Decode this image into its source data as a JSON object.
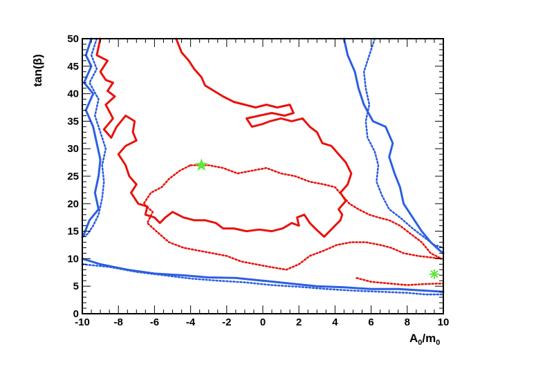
{
  "chart_data": {
    "type": "line",
    "xlabel": "A0/m0",
    "xlabel_main": "A",
    "xlabel_sub1": "0",
    "xlabel_mid": "/m",
    "xlabel_sub2": "0",
    "ylabel": "tan(β)",
    "xlim": [
      -10,
      10
    ],
    "ylim": [
      0,
      50
    ],
    "x_ticks": [
      -10,
      -8,
      -6,
      -4,
      -2,
      0,
      2,
      4,
      6,
      8,
      10
    ],
    "y_ticks": [
      0,
      5,
      10,
      15,
      20,
      25,
      30,
      35,
      40,
      45,
      50
    ],
    "grid": false,
    "colors": {
      "red": "#e8120c",
      "blue": "#2b5fe0",
      "green": "#5fe83a"
    },
    "series": [
      {
        "color": "red",
        "style": "solid",
        "points": [
          [
            -9.0,
            50
          ],
          [
            -9.2,
            47.0
          ],
          [
            -8.6,
            46.0
          ],
          [
            -9.0,
            44.0
          ],
          [
            -8.7,
            42.5
          ],
          [
            -8.3,
            42.0
          ],
          [
            -8.6,
            40.5
          ],
          [
            -8.2,
            39.5
          ],
          [
            -8.7,
            38.0
          ],
          [
            -8.3,
            35.5
          ],
          [
            -8.8,
            33.5
          ],
          [
            -8.4,
            32.0
          ],
          [
            -8.1,
            34.0
          ],
          [
            -7.6,
            36.0
          ],
          [
            -7.1,
            35.0
          ],
          [
            -7.2,
            33.0
          ],
          [
            -7.0,
            31.5
          ],
          [
            -7.6,
            30.5
          ],
          [
            -8.0,
            29.0
          ],
          [
            -7.6,
            27.0
          ],
          [
            -7.4,
            25.0
          ],
          [
            -7.0,
            23.5
          ],
          [
            -7.3,
            22.0
          ],
          [
            -6.9,
            20.0
          ],
          [
            -6.4,
            19.5
          ],
          [
            -6.5,
            18.0
          ],
          [
            -6.0,
            17.5
          ],
          [
            -5.7,
            16.5
          ],
          [
            -5.4,
            17.5
          ],
          [
            -5.0,
            18.5
          ],
          [
            -4.4,
            17.5
          ],
          [
            -3.8,
            17.0
          ],
          [
            -3.2,
            17.0
          ],
          [
            -2.6,
            16.5
          ],
          [
            -2.2,
            15.5
          ],
          [
            -1.6,
            15.5
          ],
          [
            -0.9,
            15.0
          ],
          [
            -0.2,
            15.3
          ],
          [
            0.5,
            15.0
          ],
          [
            1.1,
            15.5
          ],
          [
            1.6,
            16.5
          ],
          [
            2.0,
            16.0
          ],
          [
            1.9,
            17.5
          ],
          [
            2.3,
            18.0
          ],
          [
            2.6,
            16.5
          ],
          [
            2.9,
            15.5
          ],
          [
            3.4,
            14.0
          ],
          [
            3.7,
            15.0
          ],
          [
            4.0,
            16.0
          ],
          [
            4.3,
            17.0
          ],
          [
            4.4,
            18.0
          ],
          [
            4.2,
            19.0
          ],
          [
            4.6,
            20.5
          ],
          [
            4.3,
            22.0
          ],
          [
            4.7,
            23.5
          ],
          [
            4.9,
            25.5
          ],
          [
            4.6,
            27.5
          ],
          [
            4.2,
            29.0
          ],
          [
            3.8,
            30.5
          ],
          [
            3.3,
            31.0
          ],
          [
            3.0,
            33.0
          ],
          [
            2.6,
            34.0
          ],
          [
            2.2,
            35.5
          ],
          [
            1.6,
            35.0
          ],
          [
            1.0,
            35.5
          ],
          [
            0.4,
            35.0
          ],
          [
            0.0,
            34.5
          ],
          [
            -0.6,
            34.0
          ],
          [
            -0.9,
            35.5
          ],
          [
            -0.2,
            36.0
          ],
          [
            0.5,
            36.5
          ],
          [
            1.2,
            36.0
          ],
          [
            1.7,
            36.5
          ],
          [
            1.5,
            38.0
          ],
          [
            0.8,
            37.5
          ],
          [
            0.2,
            38.0
          ],
          [
            -0.4,
            37.5
          ],
          [
            -1.0,
            38.0
          ],
          [
            -1.6,
            38.5
          ],
          [
            -2.2,
            39.5
          ],
          [
            -2.7,
            40.5
          ],
          [
            -3.2,
            41.5
          ],
          [
            -3.4,
            43.0
          ],
          [
            -3.8,
            44.5
          ],
          [
            -4.1,
            46.0
          ],
          [
            -4.5,
            47.5
          ],
          [
            -4.8,
            50
          ]
        ]
      },
      {
        "color": "red",
        "style": "dashed",
        "points": [
          [
            -4.0,
            27.0
          ],
          [
            -3.0,
            27.0
          ],
          [
            -2.2,
            26.5
          ],
          [
            -1.4,
            25.5
          ],
          [
            -0.6,
            26.0
          ],
          [
            0.2,
            26.5
          ],
          [
            1.0,
            25.5
          ],
          [
            1.8,
            25.0
          ],
          [
            2.6,
            24.0
          ],
          [
            3.4,
            23.5
          ],
          [
            4.0,
            23.0
          ],
          [
            4.4,
            21.5
          ],
          [
            4.8,
            20.0
          ],
          [
            5.3,
            19.0
          ],
          [
            5.9,
            18.0
          ],
          [
            6.4,
            17.5
          ],
          [
            7.0,
            17.0
          ],
          [
            7.6,
            16.0
          ],
          [
            8.2,
            14.5
          ],
          [
            8.8,
            13.0
          ],
          [
            9.3,
            11.0
          ],
          [
            9.9,
            10.0
          ],
          [
            8.6,
            10.5
          ],
          [
            7.8,
            11.0
          ],
          [
            7.1,
            12.0
          ],
          [
            6.5,
            12.5
          ],
          [
            5.7,
            13.0
          ],
          [
            4.9,
            13.0
          ],
          [
            4.1,
            12.5
          ],
          [
            3.4,
            11.5
          ],
          [
            2.6,
            10.5
          ],
          [
            2.0,
            9.0
          ],
          [
            1.3,
            8.0
          ],
          [
            0.4,
            8.5
          ],
          [
            -0.4,
            9.0
          ],
          [
            -1.2,
            9.5
          ],
          [
            -2.0,
            10.5
          ],
          [
            -2.8,
            11.0
          ],
          [
            -3.6,
            11.5
          ],
          [
            -4.4,
            12.0
          ],
          [
            -5.2,
            13.0
          ],
          [
            -5.9,
            15.0
          ],
          [
            -6.4,
            16.5
          ],
          [
            -6.1,
            18.5
          ],
          [
            -6.6,
            20.0
          ],
          [
            -6.2,
            22.0
          ],
          [
            -5.6,
            23.0
          ],
          [
            -5.2,
            24.5
          ],
          [
            -4.6,
            26.0
          ],
          [
            -4.0,
            27.0
          ]
        ]
      },
      {
        "color": "red",
        "style": "dashed",
        "points": [
          [
            5.2,
            6.5
          ],
          [
            6.0,
            5.8
          ],
          [
            7.0,
            5.5
          ],
          [
            8.0,
            5.2
          ],
          [
            9.0,
            5.4
          ],
          [
            10.0,
            5.5
          ]
        ]
      },
      {
        "color": "blue",
        "style": "solid",
        "points": [
          [
            -9.5,
            50
          ],
          [
            -9.8,
            47.0
          ],
          [
            -9.5,
            45.0
          ],
          [
            -9.9,
            42.0
          ],
          [
            -9.4,
            40.0
          ],
          [
            -9.8,
            37.0
          ],
          [
            -9.4,
            34.0
          ],
          [
            -9.2,
            31.0
          ],
          [
            -9.0,
            28.0
          ],
          [
            -9.1,
            25.0
          ],
          [
            -9.3,
            22.0
          ],
          [
            -9.1,
            19.0
          ],
          [
            -9.6,
            17.0
          ],
          [
            -9.9,
            14.5
          ],
          [
            -10.0,
            14.0
          ]
        ]
      },
      {
        "color": "blue",
        "style": "dashed",
        "points": [
          [
            -9.2,
            50
          ],
          [
            -9.5,
            47.0
          ],
          [
            -9.2,
            44.5
          ],
          [
            -9.6,
            42.0
          ],
          [
            -9.1,
            39.0
          ],
          [
            -9.3,
            36.0
          ],
          [
            -9.0,
            33.0
          ],
          [
            -8.7,
            30.0
          ],
          [
            -8.9,
            27.0
          ],
          [
            -8.8,
            24.0
          ],
          [
            -8.9,
            21.0
          ],
          [
            -9.1,
            18.0
          ],
          [
            -9.4,
            16.0
          ],
          [
            -9.7,
            14.5
          ],
          [
            -10.0,
            14.0
          ]
        ]
      },
      {
        "color": "blue",
        "style": "solid",
        "points": [
          [
            -10.0,
            10.0
          ],
          [
            -9.0,
            9.0
          ],
          [
            -7.5,
            8.0
          ],
          [
            -6.0,
            7.3
          ],
          [
            -4.5,
            7.0
          ],
          [
            -3.0,
            6.6
          ],
          [
            -1.5,
            6.5
          ],
          [
            0.0,
            6.0
          ],
          [
            1.5,
            5.5
          ],
          [
            3.0,
            5.0
          ],
          [
            4.5,
            4.8
          ],
          [
            6.0,
            4.5
          ],
          [
            7.5,
            4.5
          ],
          [
            9.0,
            4.2
          ],
          [
            10.0,
            4.0
          ]
        ]
      },
      {
        "color": "blue",
        "style": "dashed",
        "points": [
          [
            -10.0,
            9.0
          ],
          [
            -8.5,
            8.5
          ],
          [
            -7.0,
            7.6
          ],
          [
            -5.5,
            7.0
          ],
          [
            -4.0,
            6.4
          ],
          [
            -2.5,
            6.0
          ],
          [
            -1.0,
            5.7
          ],
          [
            0.5,
            5.2
          ],
          [
            2.0,
            4.9
          ],
          [
            3.5,
            4.5
          ],
          [
            5.0,
            4.2
          ],
          [
            6.5,
            4.0
          ],
          [
            8.0,
            3.8
          ],
          [
            9.0,
            3.5
          ],
          [
            10.0,
            3.5
          ]
        ]
      },
      {
        "color": "blue",
        "style": "solid",
        "points": [
          [
            4.5,
            50
          ],
          [
            4.7,
            47.0
          ],
          [
            5.1,
            44.0
          ],
          [
            5.3,
            41.0
          ],
          [
            5.6,
            38.0
          ],
          [
            6.1,
            35.0
          ],
          [
            6.8,
            34.0
          ],
          [
            7.2,
            31.0
          ],
          [
            7.0,
            28.5
          ],
          [
            7.3,
            25.5
          ],
          [
            7.6,
            23.0
          ],
          [
            7.8,
            20.0
          ],
          [
            8.3,
            17.5
          ],
          [
            8.8,
            15.0
          ],
          [
            9.3,
            13.0
          ],
          [
            9.8,
            11.5
          ],
          [
            10.0,
            11.0
          ]
        ]
      },
      {
        "color": "blue",
        "style": "dashed",
        "points": [
          [
            6.2,
            50
          ],
          [
            5.9,
            47.0
          ],
          [
            5.6,
            44.0
          ],
          [
            5.7,
            41.0
          ],
          [
            5.9,
            38.0
          ],
          [
            5.7,
            35.0
          ],
          [
            5.8,
            32.0
          ],
          [
            6.2,
            29.5
          ],
          [
            6.4,
            27.0
          ],
          [
            6.3,
            24.0
          ],
          [
            6.6,
            21.5
          ],
          [
            7.0,
            19.0
          ],
          [
            7.6,
            17.5
          ],
          [
            8.3,
            15.5
          ],
          [
            8.9,
            14.0
          ],
          [
            9.5,
            12.5
          ],
          [
            10.0,
            12.0
          ]
        ]
      }
    ],
    "markers": [
      {
        "shape": "star",
        "x": -3.4,
        "y": 27.0,
        "color": "green"
      },
      {
        "shape": "asterisk",
        "x": 9.5,
        "y": 7.2,
        "color": "green"
      }
    ]
  }
}
